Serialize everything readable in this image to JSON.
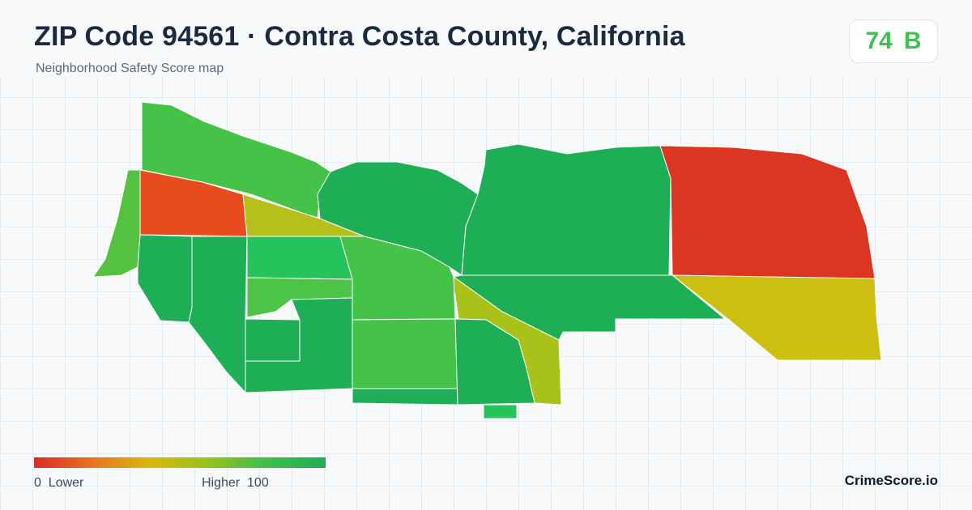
{
  "header": {
    "title": "ZIP Code 94561 · Contra Costa County, California",
    "subtitle": "Neighborhood Safety Score map"
  },
  "score": {
    "value": "74",
    "grade": "B",
    "color": "#3ec24a"
  },
  "legend": {
    "low_label": "0  Lower",
    "high_label": "Higher  100",
    "min": 0,
    "max": 100,
    "colors": [
      "#dc2a26",
      "#e8741c",
      "#d9b80f",
      "#93c21e",
      "#3bbf4b",
      "#1eae55"
    ]
  },
  "map": {
    "regions": [
      {
        "name": "region-northwest-coast",
        "color": "#44c348"
      },
      {
        "name": "region-west-shore",
        "color": "#55c140"
      },
      {
        "name": "region-northwest-red",
        "color": "#e84c1e"
      },
      {
        "name": "region-olive-strip",
        "color": "#b5c11a"
      },
      {
        "name": "region-north-central",
        "color": "#1eae55"
      },
      {
        "name": "region-north-east-central",
        "color": "#1eae55"
      },
      {
        "name": "region-northeast-red",
        "color": "#dc3522"
      },
      {
        "name": "region-east-olive",
        "color": "#ccbf10"
      },
      {
        "name": "region-east-central-lower",
        "color": "#1eae55"
      },
      {
        "name": "region-diagonal-olive",
        "color": "#a8c21a"
      },
      {
        "name": "region-west-lower-1",
        "color": "#1eae55"
      },
      {
        "name": "region-west-lower-2",
        "color": "#1eae55"
      },
      {
        "name": "region-central-bright",
        "color": "#26c25c"
      },
      {
        "name": "region-central-band",
        "color": "#4ec447"
      },
      {
        "name": "region-central-light",
        "color": "#44c348"
      },
      {
        "name": "region-central-south",
        "color": "#1eae55"
      },
      {
        "name": "region-small-box",
        "color": "#1eae55"
      },
      {
        "name": "region-center-block",
        "color": "#44c348"
      },
      {
        "name": "region-south-strip",
        "color": "#1eae55"
      },
      {
        "name": "region-south-central",
        "color": "#1eae55"
      },
      {
        "name": "region-south-tab",
        "color": "#26c25c"
      }
    ]
  },
  "brand": "CrimeScore.io"
}
